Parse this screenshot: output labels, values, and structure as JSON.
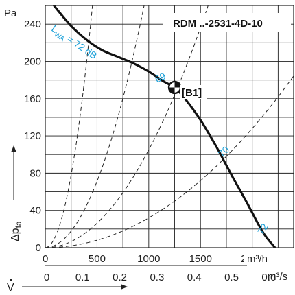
{
  "chart_data": {
    "type": "line",
    "title": "RDM ..-2531-4D-10",
    "ylabel_unit": "Pa",
    "ylabel": "Δp",
    "ylabel_sub": "fa",
    "xlabel": "V",
    "x_unit_primary": "m³/h",
    "x_unit_secondary": "m³/s",
    "xlim": [
      0,
      2400
    ],
    "ylim": [
      0,
      260
    ],
    "x_ticks": [
      "0",
      "500",
      "1000",
      "1500",
      "2000"
    ],
    "x_ticks_secondary": [
      "0",
      "0.1",
      "0.2",
      "0.3",
      "0.4",
      "0.5",
      "0.6"
    ],
    "y_ticks": [
      "0",
      "40",
      "80",
      "120",
      "160",
      "200",
      "240"
    ],
    "fan_curve": {
      "x": [
        0,
        120,
        250,
        400,
        550,
        700,
        850,
        1000,
        1150,
        1250,
        1350,
        1500,
        1650,
        1800,
        1950,
        2100,
        2220
      ],
      "y": [
        272,
        255,
        238,
        223,
        212,
        205,
        198,
        189,
        178,
        172,
        160,
        137,
        109,
        78,
        48,
        17,
        0
      ]
    },
    "system_curves": [
      {
        "k": 0.00125
      },
      {
        "k": 0.000285
      },
      {
        "k": 0.000105
      },
      {
        "k": 3.2e-05
      }
    ],
    "sound_labels": [
      "L",
      "WA",
      " = 72 dB",
      "69",
      "70",
      "72"
    ],
    "operating_point": {
      "label": "[B1]",
      "x": 1250,
      "y": 172
    }
  }
}
